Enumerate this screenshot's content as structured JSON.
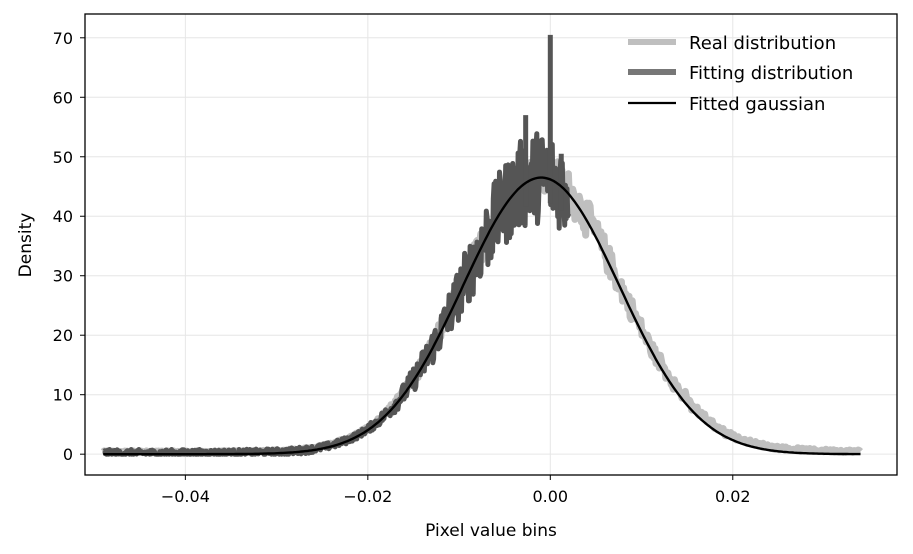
{
  "chart_data": {
    "type": "line",
    "title": "",
    "xlabel": "Pixel value bins",
    "ylabel": "Density",
    "xlim": [
      -0.051,
      0.038
    ],
    "ylim": [
      -3.5,
      74
    ],
    "xticks": [
      -0.04,
      -0.02,
      0.0,
      0.02
    ],
    "xtick_labels": [
      "−0.04",
      "−0.02",
      "0.00",
      "0.02"
    ],
    "yticks": [
      0,
      10,
      20,
      30,
      40,
      50,
      60,
      70
    ],
    "ytick_labels": [
      "0",
      "10",
      "20",
      "30",
      "40",
      "50",
      "60",
      "70"
    ],
    "grid": true,
    "legend_position": "top-right",
    "series": [
      {
        "name": "Real distribution",
        "color": "#bfbfbf",
        "x_range": [
          -0.049,
          0.034
        ],
        "peak_x": -0.001,
        "peak_density": 46.5,
        "sigma": 0.0086
      },
      {
        "name": "Fitting distribution",
        "color": "#777777",
        "x_range": [
          -0.049,
          0.002
        ],
        "peak_x": -0.001,
        "peak_density": 46.5,
        "sigma": 0.0086,
        "spikes": [
          {
            "x": -0.0027,
            "y": 57
          },
          {
            "x": 0.0,
            "y": 70.5
          },
          {
            "x": 0.0012,
            "y": 50.5
          }
        ]
      },
      {
        "name": "Fitted gaussian",
        "color": "#000000",
        "x_range": [
          -0.049,
          0.034
        ],
        "mu": -0.001,
        "sigma": 0.0086,
        "amplitude": 46.5
      }
    ]
  }
}
